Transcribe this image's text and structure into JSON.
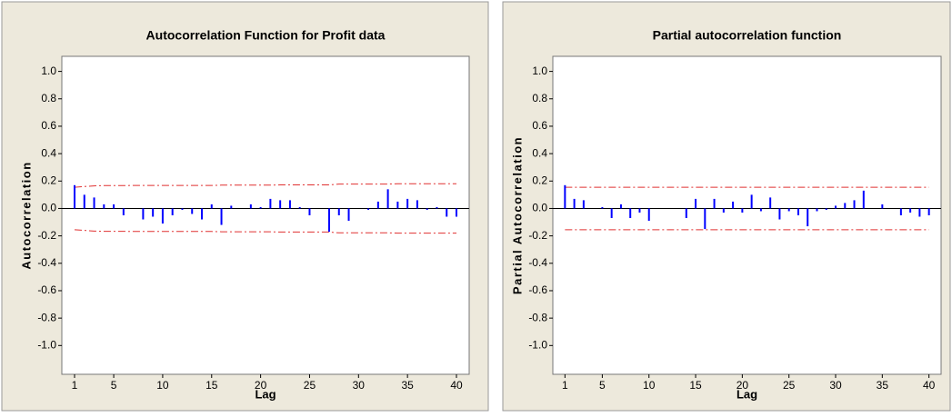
{
  "chart_data": [
    {
      "type": "bar",
      "title": "Autocorrelation Function for Profit data",
      "x_label": "Lag",
      "y_label": "Autocorrelation",
      "x": [
        1,
        2,
        3,
        4,
        5,
        6,
        7,
        8,
        9,
        10,
        11,
        12,
        13,
        14,
        15,
        16,
        17,
        18,
        19,
        20,
        21,
        22,
        23,
        24,
        25,
        26,
        27,
        28,
        29,
        30,
        31,
        32,
        33,
        34,
        35,
        36,
        37,
        38,
        39,
        40
      ],
      "values": [
        0.17,
        0.1,
        0.08,
        0.03,
        0.03,
        -0.05,
        0.0,
        -0.08,
        -0.06,
        -0.11,
        -0.05,
        -0.01,
        -0.04,
        -0.08,
        0.03,
        -0.12,
        0.02,
        0.0,
        0.03,
        0.01,
        0.07,
        0.06,
        0.06,
        0.01,
        -0.05,
        0.0,
        -0.17,
        -0.05,
        -0.09,
        0.0,
        -0.01,
        0.05,
        0.14,
        0.05,
        0.07,
        0.06,
        -0.01,
        0.01,
        -0.06,
        -0.06
      ],
      "upper_limit": [
        0.155,
        0.16,
        0.165,
        0.167,
        0.167,
        0.167,
        0.168,
        0.168,
        0.168,
        0.168,
        0.168,
        0.168,
        0.168,
        0.168,
        0.168,
        0.17,
        0.17,
        0.17,
        0.17,
        0.17,
        0.17,
        0.172,
        0.172,
        0.172,
        0.172,
        0.172,
        0.172,
        0.178,
        0.178,
        0.178,
        0.178,
        0.178,
        0.178,
        0.18,
        0.18,
        0.18,
        0.18,
        0.18,
        0.18,
        0.18
      ],
      "lower_limit": [
        -0.155,
        -0.16,
        -0.165,
        -0.167,
        -0.167,
        -0.167,
        -0.168,
        -0.168,
        -0.168,
        -0.168,
        -0.168,
        -0.168,
        -0.168,
        -0.168,
        -0.168,
        -0.17,
        -0.17,
        -0.17,
        -0.17,
        -0.17,
        -0.17,
        -0.172,
        -0.172,
        -0.172,
        -0.172,
        -0.172,
        -0.172,
        -0.178,
        -0.178,
        -0.178,
        -0.178,
        -0.178,
        -0.178,
        -0.18,
        -0.18,
        -0.18,
        -0.18,
        -0.18,
        -0.18,
        -0.18
      ],
      "color": "#0000ff",
      "limit_color": "#e03030",
      "xlim": [
        -0.3,
        41.3
      ],
      "xticks": [
        1,
        5,
        10,
        15,
        20,
        25,
        30,
        35,
        40
      ],
      "ylim": [
        -1.21,
        1.11
      ],
      "yticks": [
        {
          "value": 1,
          "label": "1.0"
        },
        0.8,
        0.6,
        0.4,
        0.2,
        {
          "value": 0,
          "label": "0.0"
        },
        -0.2,
        -0.4,
        -0.6,
        -0.8,
        {
          "value": -1,
          "label": "-1.0"
        }
      ]
    },
    {
      "type": "bar",
      "title": "Partial autocorrelation function",
      "x_label": "Lag",
      "y_label": "Partial Autocorrelation",
      "x": [
        1,
        2,
        3,
        4,
        5,
        6,
        7,
        8,
        9,
        10,
        11,
        12,
        13,
        14,
        15,
        16,
        17,
        18,
        19,
        20,
        21,
        22,
        23,
        24,
        25,
        26,
        27,
        28,
        29,
        30,
        31,
        32,
        33,
        34,
        35,
        36,
        37,
        38,
        39,
        40
      ],
      "values": [
        0.17,
        0.07,
        0.06,
        0.0,
        0.01,
        -0.07,
        0.03,
        -0.07,
        -0.03,
        -0.09,
        0.0,
        0.0,
        0.0,
        -0.07,
        0.07,
        -0.15,
        0.07,
        -0.03,
        0.05,
        -0.03,
        0.1,
        -0.02,
        0.08,
        -0.08,
        -0.02,
        -0.05,
        -0.13,
        -0.02,
        -0.01,
        0.02,
        0.04,
        0.06,
        0.13,
        0.0,
        0.03,
        0.0,
        -0.05,
        -0.03,
        -0.06,
        -0.05
      ],
      "upper_limit": [
        0.155,
        0.155,
        0.155,
        0.155,
        0.155,
        0.155,
        0.155,
        0.155,
        0.155,
        0.155,
        0.155,
        0.155,
        0.155,
        0.155,
        0.155,
        0.155,
        0.155,
        0.155,
        0.155,
        0.155,
        0.155,
        0.155,
        0.155,
        0.155,
        0.155,
        0.155,
        0.155,
        0.155,
        0.155,
        0.155,
        0.155,
        0.155,
        0.155,
        0.155,
        0.155,
        0.155,
        0.155,
        0.155,
        0.155,
        0.155
      ],
      "lower_limit": [
        -0.155,
        -0.155,
        -0.155,
        -0.155,
        -0.155,
        -0.155,
        -0.155,
        -0.155,
        -0.155,
        -0.155,
        -0.155,
        -0.155,
        -0.155,
        -0.155,
        -0.155,
        -0.155,
        -0.155,
        -0.155,
        -0.155,
        -0.155,
        -0.155,
        -0.155,
        -0.155,
        -0.155,
        -0.155,
        -0.155,
        -0.155,
        -0.155,
        -0.155,
        -0.155,
        -0.155,
        -0.155,
        -0.155,
        -0.155,
        -0.155,
        -0.155,
        -0.155,
        -0.155,
        -0.155,
        -0.155
      ],
      "color": "#0000ff",
      "limit_color": "#e03030",
      "xlim": [
        -0.3,
        41.3
      ],
      "xticks": [
        1,
        5,
        10,
        15,
        20,
        25,
        30,
        35,
        40
      ],
      "ylim": [
        -1.21,
        1.11
      ],
      "yticks": [
        {
          "value": 1,
          "label": "1.0"
        },
        0.8,
        0.6,
        0.4,
        0.2,
        {
          "value": 0,
          "label": "0.0"
        },
        -0.2,
        -0.4,
        -0.6,
        -0.8,
        {
          "value": -1,
          "label": "-1.0"
        }
      ]
    }
  ]
}
